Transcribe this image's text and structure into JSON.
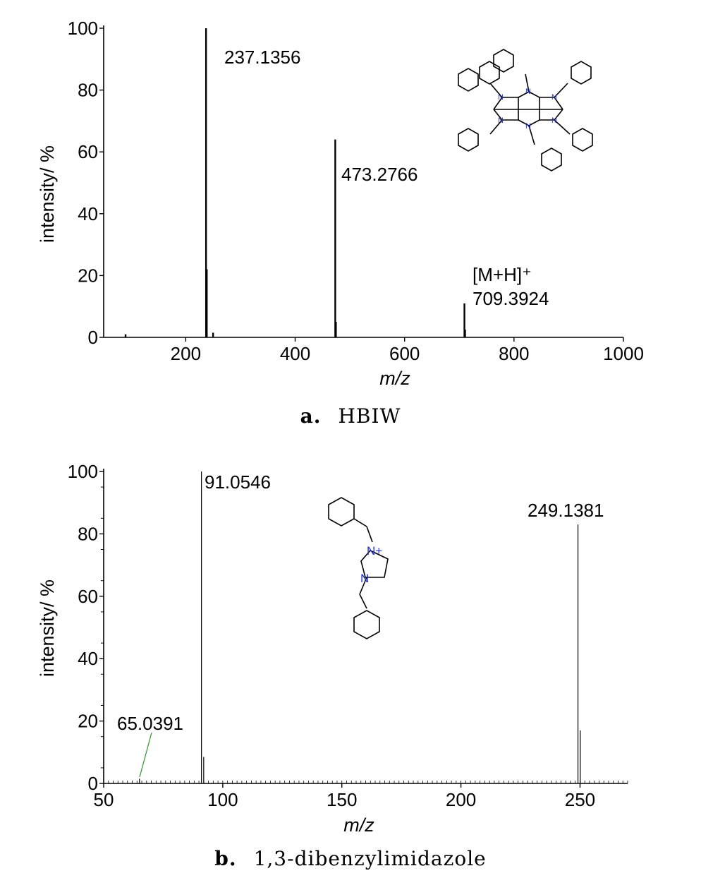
{
  "figure": {
    "caption_a": {
      "tag": "a.",
      "text": "HBIW"
    },
    "caption_b": {
      "tag": "b.",
      "text": "1,3-dibenzylimidazole"
    }
  },
  "chart_data": [
    {
      "type": "bar",
      "panel": "a",
      "xlabel": "m/z",
      "ylabel": "intensity/ %",
      "xlim": [
        50,
        1000
      ],
      "ylim": [
        0,
        100
      ],
      "xticks": [
        200,
        400,
        600,
        800,
        1000
      ],
      "yticks": [
        0,
        20,
        40,
        60,
        80,
        100
      ],
      "peaks": [
        {
          "x": 90,
          "y": 1
        },
        {
          "x": 237.1356,
          "y": 100
        },
        {
          "x": 238.5,
          "y": 22
        },
        {
          "x": 250,
          "y": 1.5
        },
        {
          "x": 473.2766,
          "y": 64
        },
        {
          "x": 474.5,
          "y": 5
        },
        {
          "x": 709.3924,
          "y": 11
        },
        {
          "x": 710.6,
          "y": 2.5
        }
      ],
      "annotations": [
        {
          "text": "237.1356",
          "x": 237.1356,
          "y": 100
        },
        {
          "text": "473.2766",
          "x": 473.2766,
          "y": 64
        },
        {
          "text": "[M+H]⁺",
          "x": 709.3924,
          "y": 11
        },
        {
          "text": "709.3924",
          "x": 709.3924,
          "y": 11
        }
      ],
      "atom_labels": [
        "N",
        "N",
        "N",
        "N",
        "N",
        "N"
      ]
    },
    {
      "type": "bar",
      "panel": "b",
      "xlabel": "m/z",
      "ylabel": "intensity/ %",
      "xlim": [
        50,
        270
      ],
      "ylim": [
        0,
        100
      ],
      "xticks": [
        50,
        100,
        150,
        200,
        250
      ],
      "yticks": [
        0,
        20,
        40,
        60,
        80,
        100
      ],
      "peaks": [
        {
          "x": 65.0391,
          "y": 1.5
        },
        {
          "x": 91.0546,
          "y": 100
        },
        {
          "x": 92.0,
          "y": 8.5
        },
        {
          "x": 249.1381,
          "y": 83
        },
        {
          "x": 250.1,
          "y": 17
        }
      ],
      "annotations": [
        {
          "text": "65.0391",
          "x": 65.0391,
          "y": 1.5
        },
        {
          "text": "91.0546",
          "x": 91.0546,
          "y": 100
        },
        {
          "text": "249.1381",
          "x": 249.1381,
          "y": 83
        }
      ],
      "atom_labels": [
        "N+",
        "N"
      ]
    }
  ]
}
